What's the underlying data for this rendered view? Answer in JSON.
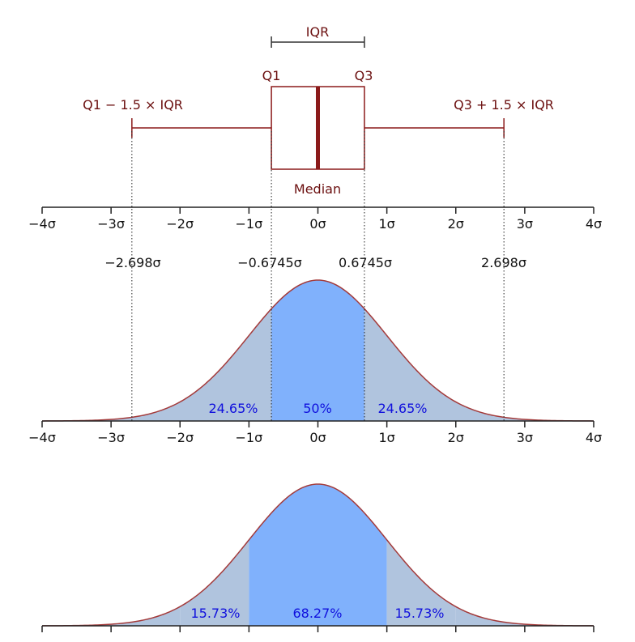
{
  "boxplot": {
    "iqr_label": "IQR",
    "q1_label": "Q1",
    "q3_label": "Q3",
    "median_label": "Median",
    "lower_whisker_label": "Q1 − 1.5 × IQR",
    "upper_whisker_label": "Q3 + 1.5 × IQR"
  },
  "sigma_ticks": [
    "−4σ",
    "−3σ",
    "−2σ",
    "−1σ",
    "0σ",
    "1σ",
    "2σ",
    "3σ",
    "4σ"
  ],
  "boundary_labels": [
    "−2.698σ",
    "−0.6745σ",
    "0.6745σ",
    "2.698σ"
  ],
  "quartile_curve": {
    "pct_left": "24.65%",
    "pct_center": "50%",
    "pct_right": "24.65%"
  },
  "sigma_curve": {
    "pct_left": "15.73%",
    "pct_center": "68.27%",
    "pct_right": "15.73%"
  },
  "chart_data": {
    "type": "area",
    "x_range": [
      -4,
      4
    ],
    "box": {
      "q1": -0.6745,
      "median": 0,
      "q3": 0.6745,
      "whisker_low": -2.698,
      "whisker_high": 2.698
    },
    "quartile_regions": [
      {
        "from": -2.698,
        "to": -0.6745,
        "percent": 24.65
      },
      {
        "from": -0.6745,
        "to": 0.6745,
        "percent": 50
      },
      {
        "from": 0.6745,
        "to": 2.698,
        "percent": 24.65
      }
    ],
    "sigma_regions": [
      {
        "from": -2,
        "to": -1,
        "percent": 15.73
      },
      {
        "from": -1,
        "to": 1,
        "percent": 68.27
      },
      {
        "from": 1,
        "to": 2,
        "percent": 15.73
      }
    ],
    "colors": {
      "box": "#8b1a1a",
      "curve": "#a33a3a",
      "tail_fill": "#b0c4de",
      "center_fill": "#80b1fc",
      "percent_text": "#1010dd",
      "label_text": "#6b0f0f"
    }
  }
}
